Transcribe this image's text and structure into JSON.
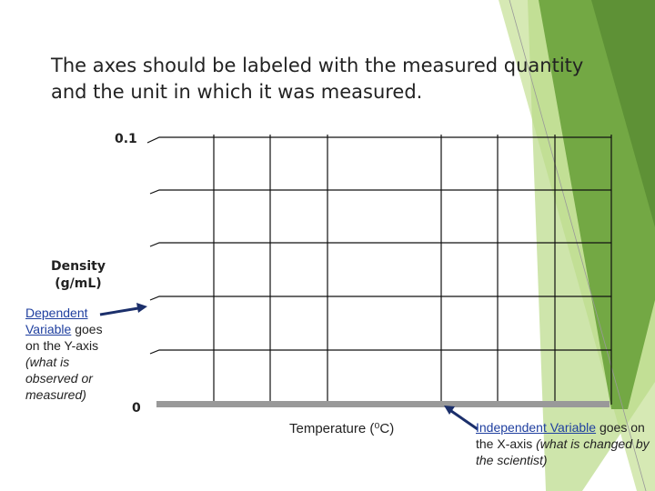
{
  "slide": {
    "title": "The axes should be labeled with the measured quantity and the unit in which it was measured."
  },
  "graph": {
    "y_top_label": "0.1",
    "y_bottom_label": "0",
    "y_axis_label": "Density (g/mL)",
    "x_axis_label": "Temperature (⁰C)"
  },
  "left_note": {
    "link": "Dependent Variable",
    "text": "goes on the Y-axis",
    "italic": "(what is observed or measured)"
  },
  "right_note": {
    "link": "Independent Variable",
    "text": "goes on the X-axis",
    "italic": "(what is changed by the scientist)"
  }
}
